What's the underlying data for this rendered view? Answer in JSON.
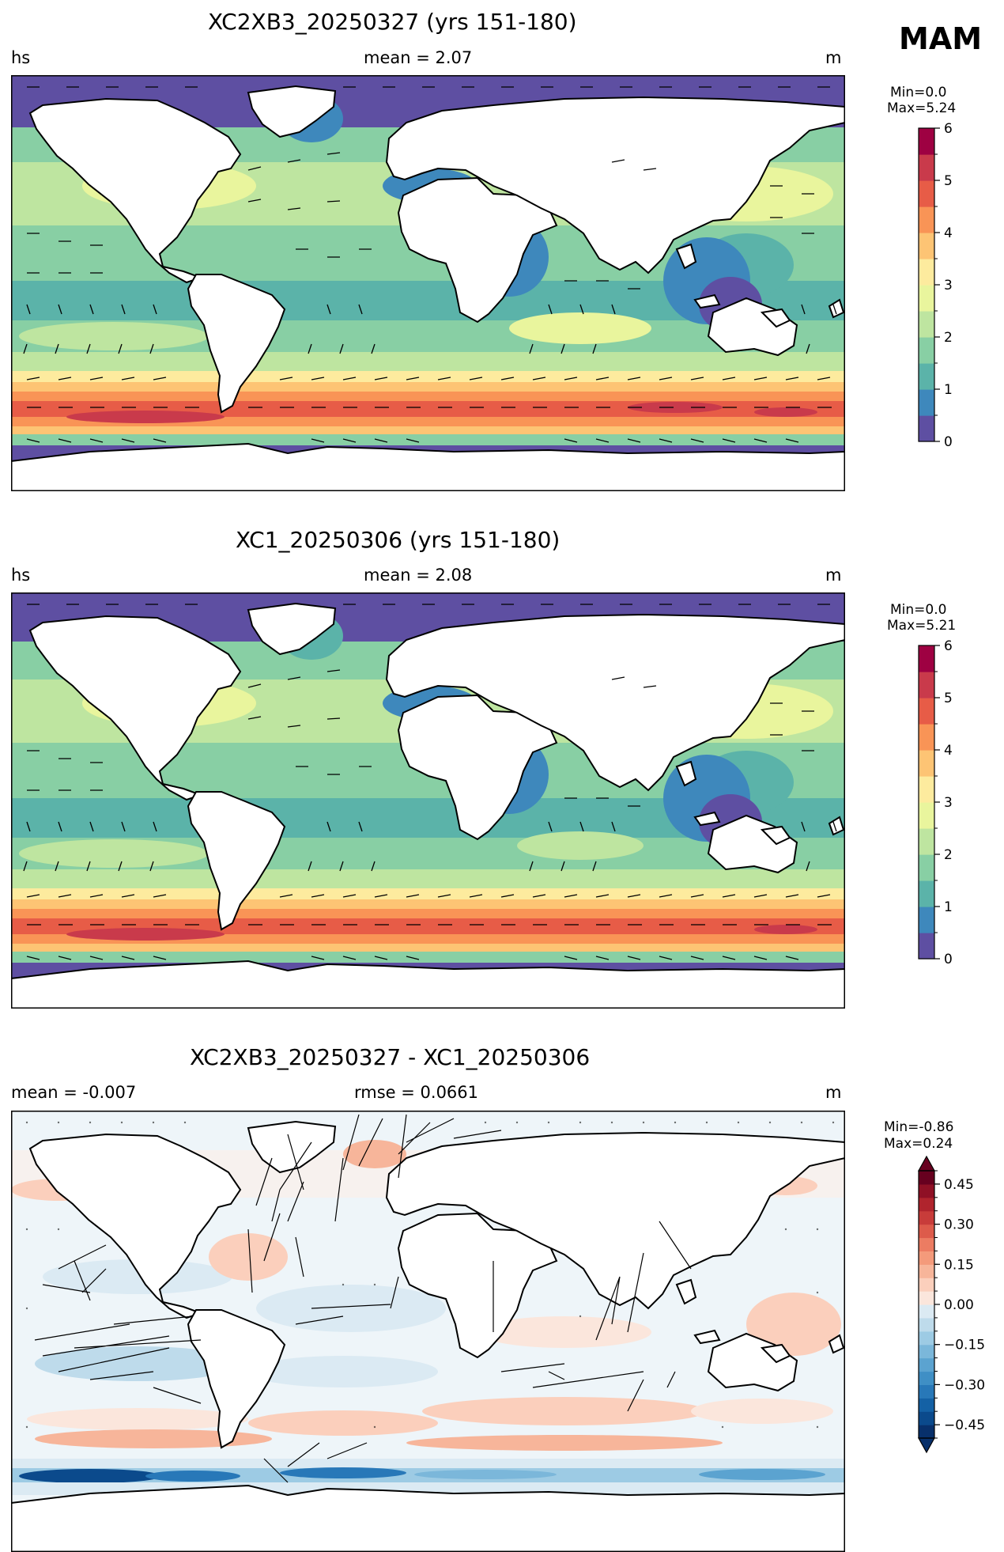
{
  "season": "MAM",
  "panels": [
    {
      "title": "XC2XB3_20250327 (yrs 151-180)",
      "left_label": "hs",
      "center_label": "mean = 2.07",
      "unit": "m",
      "min_label": "Min=0.0",
      "max_label": "Max=5.24",
      "colorbar": {
        "colormap": "Spectral_r",
        "ticks": [
          "0",
          "1",
          "2",
          "3",
          "4",
          "5",
          "6"
        ],
        "levels": 12,
        "range": [
          0,
          6
        ],
        "colors": [
          "#5e4fa2",
          "#3e88bc",
          "#5bb3a9",
          "#88cfa4",
          "#bee5a0",
          "#e9f59d",
          "#fdeb9e",
          "#fdc474",
          "#f99456",
          "#e75c47",
          "#c93a4b",
          "#9e0142"
        ]
      }
    },
    {
      "title": "XC1_20250306 (yrs 151-180)",
      "left_label": "hs",
      "center_label": "mean = 2.08",
      "unit": "m",
      "min_label": "Min=0.0",
      "max_label": "Max=5.21",
      "colorbar": {
        "colormap": "Spectral_r",
        "ticks": [
          "0",
          "1",
          "2",
          "3",
          "4",
          "5",
          "6"
        ],
        "levels": 12,
        "range": [
          0,
          6
        ],
        "colors": [
          "#5e4fa2",
          "#3e88bc",
          "#5bb3a9",
          "#88cfa4",
          "#bee5a0",
          "#e9f59d",
          "#fdeb9e",
          "#fdc474",
          "#f99456",
          "#e75c47",
          "#c93a4b",
          "#9e0142"
        ]
      }
    },
    {
      "title": "XC2XB3_20250327 - XC1_20250306",
      "left_label": "mean = -0.007",
      "center_label": "rmse = 0.0661",
      "unit": "m",
      "min_label": "Min=-0.86",
      "max_label": "Max=0.24",
      "colorbar": {
        "colormap": "RdBu_r",
        "ticks": [
          "−0.45",
          "−0.30",
          "−0.15",
          "0.00",
          "0.15",
          "0.30",
          "0.45"
        ],
        "levels": 20,
        "range": [
          -0.5,
          0.5
        ],
        "extend": "both",
        "colors": [
          "#08306b",
          "#0b4a8c",
          "#1461a5",
          "#2878b8",
          "#3f8fc5",
          "#5ba3d0",
          "#7bb7da",
          "#9dcbe4",
          "#bedbeb",
          "#dbeaf3",
          "#fbe6dc",
          "#fbcfbc",
          "#f7b59a",
          "#f49a7b",
          "#ec7c62",
          "#dd5b4b",
          "#c83c3a",
          "#b0242d",
          "#8f1025",
          "#67001f"
        ]
      }
    }
  ]
}
